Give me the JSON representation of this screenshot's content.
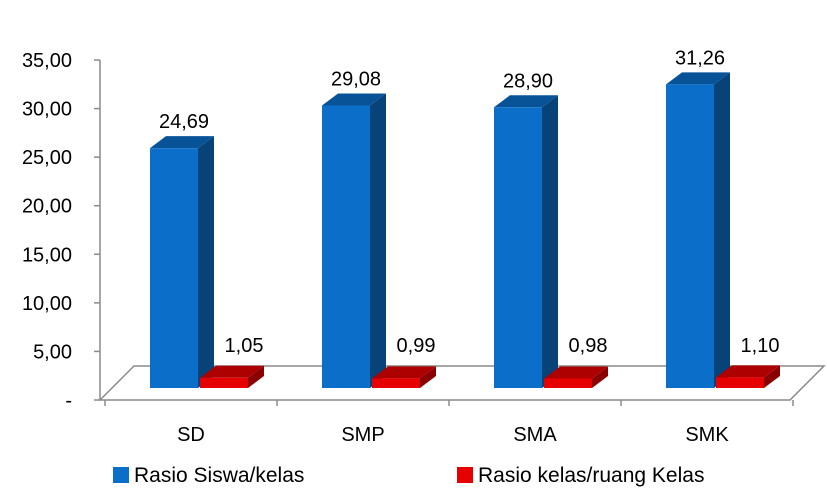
{
  "chart_data": {
    "type": "bar",
    "categories": [
      "SD",
      "SMP",
      "SMA",
      "SMK"
    ],
    "series": [
      {
        "name": "Rasio Siswa/kelas",
        "values": [
          24.69,
          29.08,
          28.9,
          31.26
        ],
        "labels": [
          "24,69",
          "29,08",
          "28,90",
          "31,26"
        ],
        "color": "#0B6FC9"
      },
      {
        "name": "Rasio kelas/ruang Kelas",
        "values": [
          1.05,
          0.99,
          0.98,
          1.1
        ],
        "labels": [
          "1,05",
          "0,99",
          "0,98",
          "1,10"
        ],
        "color": "#E60000"
      }
    ],
    "yticks": [
      0,
      5,
      10,
      15,
      20,
      25,
      30,
      35
    ],
    "ytick_labels": [
      "-",
      "5,00",
      "10,00",
      "15,00",
      "20,00",
      "25,00",
      "30,00",
      "35,00"
    ],
    "ylim": [
      0,
      35
    ],
    "title": "",
    "xlabel": "",
    "ylabel": "",
    "legend_position": "bottom",
    "grid": false,
    "style": "3d-column"
  }
}
